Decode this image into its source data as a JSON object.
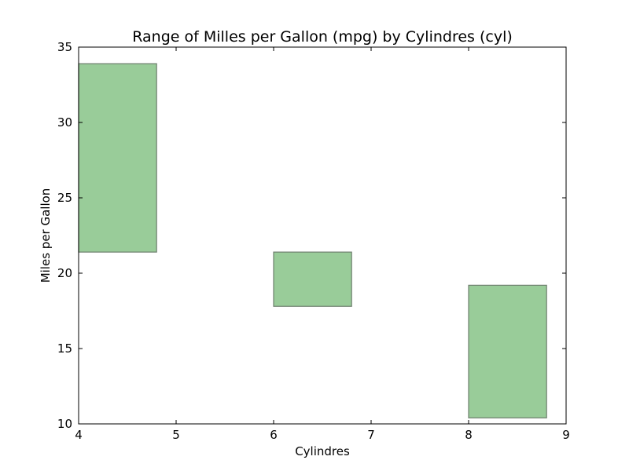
{
  "chart_data": {
    "type": "bar",
    "title": "Range of Milles per Gallon (mpg) by Cylindres (cyl)",
    "xlabel": "Cylindres",
    "ylabel": "Miles per Gallon",
    "xlim": [
      4,
      9
    ],
    "ylim": [
      10,
      35
    ],
    "xticks": [
      4,
      5,
      6,
      7,
      8,
      9
    ],
    "yticks": [
      10,
      15,
      20,
      25,
      30,
      35
    ],
    "grid": false,
    "bar_color": "#99cc99",
    "bar_edge_color": "#6e7f6e",
    "bars": [
      {
        "x": 4,
        "width": 0.8,
        "bottom": 21.4,
        "top": 33.9
      },
      {
        "x": 6,
        "width": 0.8,
        "bottom": 17.8,
        "top": 21.4
      },
      {
        "x": 8,
        "width": 0.8,
        "bottom": 10.4,
        "top": 19.2
      }
    ]
  }
}
